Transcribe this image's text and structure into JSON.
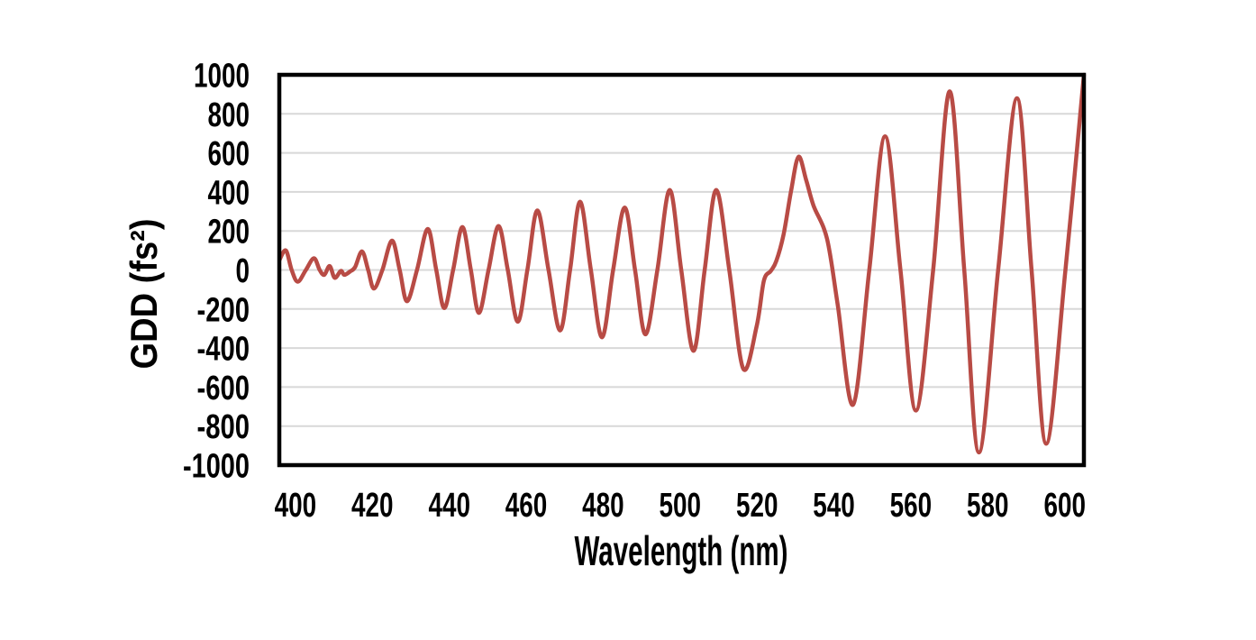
{
  "chart_data": {
    "type": "line",
    "title": "",
    "xlabel": "Wavelength (nm)",
    "ylabel": "GDD (fs²)",
    "x_ticks": [
      400,
      420,
      440,
      460,
      480,
      500,
      520,
      540,
      560,
      580,
      600
    ],
    "y_ticks": [
      1000,
      800,
      600,
      400,
      200,
      0,
      -200,
      -400,
      -600,
      -800,
      -1000
    ],
    "xlim": [
      395.8,
      605
    ],
    "ylim": [
      -1000,
      1000
    ],
    "grid": "horizontal-only",
    "gridline_values": [
      -800,
      -600,
      -400,
      -200,
      0,
      200,
      400,
      600,
      800
    ],
    "legend_position": "none",
    "series": [
      {
        "name": "GDD",
        "color": "#B84B45",
        "points": [
          [
            395.8,
            50
          ],
          [
            397.5,
            100
          ],
          [
            399.0,
            0
          ],
          [
            400.6,
            -60
          ],
          [
            402.7,
            0
          ],
          [
            404.8,
            60
          ],
          [
            406.3,
            0
          ],
          [
            407.5,
            -25
          ],
          [
            408.9,
            20
          ],
          [
            410.2,
            -40
          ],
          [
            411.8,
            -5
          ],
          [
            412.7,
            -25
          ],
          [
            414.2,
            -8
          ],
          [
            415.5,
            15
          ],
          [
            417.3,
            95
          ],
          [
            418.9,
            0
          ],
          [
            420.4,
            -95
          ],
          [
            422.6,
            0
          ],
          [
            425.1,
            150
          ],
          [
            427.1,
            0
          ],
          [
            429.0,
            -160
          ],
          [
            431.6,
            0
          ],
          [
            434.4,
            210
          ],
          [
            436.6,
            0
          ],
          [
            438.7,
            -195
          ],
          [
            441.0,
            0
          ],
          [
            443.4,
            220
          ],
          [
            445.6,
            0
          ],
          [
            447.7,
            -220
          ],
          [
            450.2,
            0
          ],
          [
            452.8,
            225
          ],
          [
            455.2,
            0
          ],
          [
            457.8,
            -265
          ],
          [
            460.3,
            0
          ],
          [
            462.9,
            305
          ],
          [
            465.8,
            0
          ],
          [
            468.8,
            -310
          ],
          [
            471.4,
            0
          ],
          [
            474.0,
            350
          ],
          [
            476.8,
            0
          ],
          [
            479.7,
            -345
          ],
          [
            482.6,
            0
          ],
          [
            485.6,
            320
          ],
          [
            488.3,
            0
          ],
          [
            491.0,
            -330
          ],
          [
            494.1,
            0
          ],
          [
            497.3,
            410
          ],
          [
            500.3,
            0
          ],
          [
            503.5,
            -415
          ],
          [
            506.4,
            0
          ],
          [
            509.4,
            410
          ],
          [
            512.8,
            0
          ],
          [
            516.4,
            -505
          ],
          [
            519.9,
            -290
          ],
          [
            521.8,
            -55
          ],
          [
            523.6,
            -5
          ],
          [
            525.0,
            45
          ],
          [
            526.9,
            180
          ],
          [
            528.9,
            410
          ],
          [
            530.8,
            580
          ],
          [
            532.8,
            460
          ],
          [
            534.7,
            330
          ],
          [
            538.2,
            160
          ],
          [
            541.0,
            -180
          ],
          [
            545.0,
            -690
          ],
          [
            549.2,
            0
          ],
          [
            553.3,
            685
          ],
          [
            557.3,
            0
          ],
          [
            561.3,
            -720
          ],
          [
            565.8,
            0
          ],
          [
            570.1,
            915
          ],
          [
            573.9,
            0
          ],
          [
            577.7,
            -935
          ],
          [
            582.7,
            0
          ],
          [
            587.6,
            880
          ],
          [
            591.4,
            0
          ],
          [
            595.2,
            -890
          ],
          [
            600.2,
            0
          ],
          [
            605.0,
            1000
          ]
        ]
      }
    ]
  },
  "style": {
    "background": "#FFFFFF",
    "frame_color": "#000000",
    "grid_color": "#D8D8D8",
    "text_color": "#000000",
    "line_color": "#B84B45"
  }
}
